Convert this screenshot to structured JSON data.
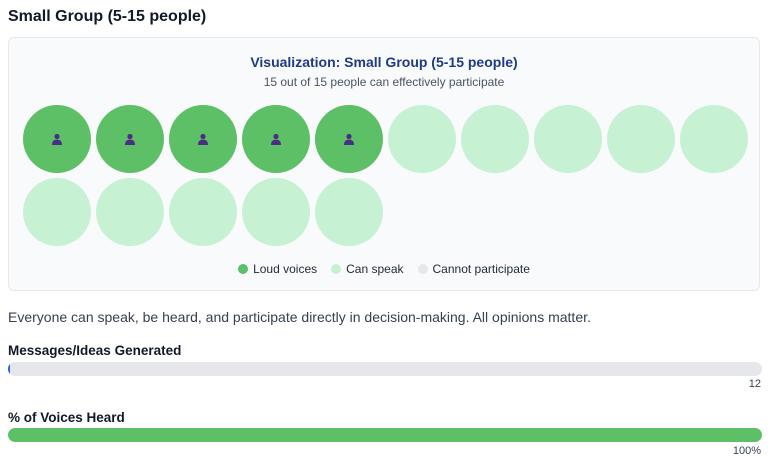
{
  "section": {
    "heading": "Small Group (5-15 people)"
  },
  "visualization": {
    "title": "Visualization: Small Group (5-15 people)",
    "subtitle": "15 out of 15 people can effectively participate",
    "people": [
      {
        "status": "loud"
      },
      {
        "status": "loud"
      },
      {
        "status": "loud"
      },
      {
        "status": "loud"
      },
      {
        "status": "loud"
      },
      {
        "status": "speak"
      },
      {
        "status": "speak"
      },
      {
        "status": "speak"
      },
      {
        "status": "speak"
      },
      {
        "status": "speak"
      },
      {
        "status": "speak"
      },
      {
        "status": "speak"
      },
      {
        "status": "speak"
      },
      {
        "status": "speak"
      },
      {
        "status": "speak"
      }
    ],
    "person_icon": "person-icon",
    "legend": [
      {
        "label": "Loud voices",
        "key": "loud",
        "color": "#5dbf66"
      },
      {
        "label": "Can speak",
        "key": "speak",
        "color": "#c6f1d2"
      },
      {
        "label": "Cannot participate",
        "key": "cannot",
        "color": "#e5e7eb"
      }
    ]
  },
  "description": "Everyone can speak, be heard, and participate directly in decision-making. All opinions matter.",
  "metrics": [
    {
      "label": "Messages/Ideas Generated",
      "value_text": "12",
      "fill_fraction": 0.003,
      "color": "#2563eb"
    },
    {
      "label": "% of Voices Heard",
      "value_text": "100%",
      "fill_fraction": 1.0,
      "color": "#5dbf66"
    }
  ],
  "colors": {
    "loud": "#5dbf66",
    "speak": "#c6f1d2",
    "cannot": "#e5e7eb",
    "title_blue": "#1e3a8a",
    "icon": "#4b2e83"
  }
}
